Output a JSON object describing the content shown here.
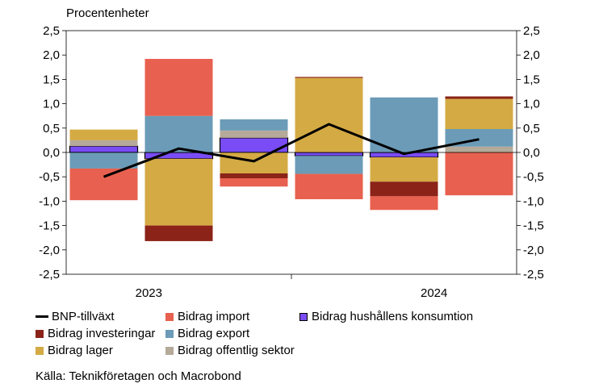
{
  "chart_data": {
    "type": "bar",
    "stacked": true,
    "unit_label": "Procentenheter",
    "categories": [
      "2023 Q1",
      "2023 Q2",
      "2023 Q3",
      "2023 Q4",
      "2024 Q1",
      "2024 Q2"
    ],
    "x_tick_labels": [
      "2023",
      "2024"
    ],
    "ylim": [
      -2.5,
      2.5
    ],
    "y_ticks": [
      "-2,5",
      "-2,0",
      "-1,5",
      "-1,0",
      "-0,5",
      "0,0",
      "0,5",
      "1,0",
      "1,5",
      "2,0",
      "2,5"
    ],
    "y_tick_values": [
      -2.5,
      -2.0,
      -1.5,
      -1.0,
      -0.5,
      0.0,
      0.5,
      1.0,
      1.5,
      2.0,
      2.5
    ],
    "series": [
      {
        "name": "Bidrag hushållens konsumtion",
        "color": "#7a4cf5",
        "values": [
          0.13,
          -0.13,
          0.3,
          -0.07,
          -0.1,
          0.0
        ]
      },
      {
        "name": "Bidrag offentlig sektor",
        "color": "#b5a99a",
        "values": [
          0.12,
          0.0,
          0.15,
          0.0,
          0.0,
          0.12
        ]
      },
      {
        "name": "Bidrag export",
        "color": "#6b9bb7",
        "values": [
          -0.33,
          0.75,
          0.23,
          -0.37,
          1.13,
          0.36
        ]
      },
      {
        "name": "Bidrag lager",
        "color": "#d4aa44",
        "values": [
          0.22,
          -1.37,
          -0.43,
          1.53,
          -0.5,
          0.62
        ]
      },
      {
        "name": "Bidrag investeringar",
        "color": "#8b2318",
        "values": [
          0.0,
          -0.32,
          -0.1,
          0.02,
          -0.3,
          0.05
        ]
      },
      {
        "name": "Bidrag import",
        "color": "#e8604f",
        "values": [
          -0.65,
          1.17,
          -0.17,
          -0.52,
          -0.28,
          -0.88
        ]
      }
    ],
    "line": {
      "name": "BNP-tillväxt",
      "color": "#000000",
      "values": [
        -0.5,
        0.08,
        -0.18,
        0.58,
        -0.03,
        0.27
      ]
    },
    "legend": [
      {
        "name": "BNP-tillväxt",
        "kind": "line",
        "color": "#000000"
      },
      {
        "name": "Bidrag import",
        "kind": "box",
        "color": "#e8604f"
      },
      {
        "name": "Bidrag hushållens konsumtion",
        "kind": "box",
        "color": "#7a4cf5"
      },
      {
        "name": "Bidrag investeringar",
        "kind": "box",
        "color": "#8b2318"
      },
      {
        "name": "Bidrag export",
        "kind": "box",
        "color": "#6b9bb7"
      },
      {
        "name": "Bidrag lager",
        "kind": "box",
        "color": "#d4aa44"
      },
      {
        "name": "Bidrag offentlig sektor",
        "kind": "box",
        "color": "#b5a99a"
      }
    ],
    "legend_placement": "bottom",
    "grid": false
  },
  "source": "Källa: Teknikföretagen och Macrobond"
}
